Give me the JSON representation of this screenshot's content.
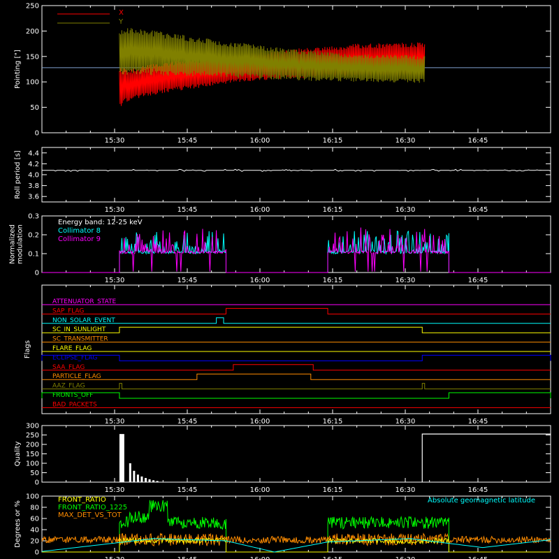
{
  "chart_data": [
    {
      "id": "pointing",
      "type": "line",
      "ylabel": "Pointing [\"]",
      "ylim": [
        0,
        250
      ],
      "yticks": [
        0,
        50,
        100,
        150,
        200,
        250
      ],
      "xticklabels": [
        "15:30",
        "15:45",
        "16:00",
        "16:15",
        "16:30",
        "16:45"
      ],
      "xtick_minutes": [
        30,
        45,
        60,
        75,
        90,
        105
      ],
      "xlim_minutes": [
        15,
        120
      ],
      "data_window_minutes": [
        31,
        94
      ],
      "reference_line": 128,
      "legend": [
        {
          "name": "X",
          "color": "#ff0000"
        },
        {
          "name": "Y",
          "color": "#808000"
        }
      ],
      "series": [
        {
          "name": "X",
          "color": "#ff0000",
          "envelope": {
            "x": [
              31,
              33,
              40,
              50,
              60,
              70,
              80,
              94
            ],
            "upper": [
              130,
              125,
              140,
              148,
              158,
              168,
              175,
              178
            ],
            "lower": [
              50,
              62,
              78,
              92,
              103,
              108,
              110,
              112
            ]
          }
        },
        {
          "name": "Y",
          "color": "#808000",
          "envelope": {
            "x": [
              31,
              33,
              40,
              50,
              60,
              70,
              80,
              94
            ],
            "upper": [
              205,
              210,
              198,
              185,
              172,
              162,
              155,
              152
            ],
            "lower": [
              110,
              115,
              112,
              110,
              106,
              102,
              100,
              98
            ]
          }
        }
      ]
    },
    {
      "id": "roll",
      "type": "line",
      "ylabel": "Roll period [s]",
      "ylim": [
        3.5,
        4.5
      ],
      "yticks": [
        3.6,
        3.8,
        4.0,
        4.2,
        4.4
      ],
      "yticklabels": [
        "3.6",
        "3.8",
        "4.0",
        "4.2",
        "4.4"
      ],
      "xticklabels": [
        "15:30",
        "15:45",
        "16:00",
        "16:15",
        "16:30",
        "16:45"
      ],
      "series": [
        {
          "name": "roll",
          "color": "#ffffff",
          "value": 4.08
        }
      ]
    },
    {
      "id": "modulation",
      "type": "line",
      "ylabel": [
        "Normalized",
        "modulation"
      ],
      "ylim": [
        0,
        0.3
      ],
      "yticks": [
        0,
        0.1,
        0.2,
        0.3
      ],
      "yticklabels": [
        "0",
        "0.1",
        "0.2",
        "0.3"
      ],
      "xticklabels": [
        "15:30",
        "15:45",
        "16:00",
        "16:15",
        "16:30",
        "16:45"
      ],
      "annotation": "Energy band: 12-25 keV",
      "legend": [
        {
          "name": "Collimator 8",
          "color": "#00ffff"
        },
        {
          "name": "Collimator 9",
          "color": "#ff00ff"
        }
      ],
      "active_intervals_minutes": [
        [
          31,
          53
        ],
        [
          74,
          99
        ]
      ],
      "base_level": 0.1
    },
    {
      "id": "flags",
      "type": "line",
      "ylabel": "Flags",
      "xticklabels": [
        "15:30",
        "15:45",
        "16:00",
        "16:15",
        "16:30",
        "16:45"
      ],
      "flags": [
        {
          "name": "ATTENUATOR_STATE",
          "color": "#ff00ff",
          "high": []
        },
        {
          "name": "SAP_FLAG",
          "color": "#ff0000",
          "high": [
            [
              53,
              74
            ]
          ]
        },
        {
          "name": "NON_SOLAR_EVENT",
          "color": "#00ffff",
          "high": [
            [
              51,
              52.5
            ]
          ]
        },
        {
          "name": "SC_IN_SUNLIGHT",
          "color": "#ffff00",
          "high": [
            [
              31,
              93.5
            ]
          ]
        },
        {
          "name": "SC_TRANSMITTER",
          "color": "#ff8c00",
          "high": []
        },
        {
          "name": "FLARE_FLAG",
          "color": "#ffff00",
          "high": []
        },
        {
          "name": "ECLIPSE_FLAG",
          "color": "#0000ff",
          "high": [
            [
              15,
              31
            ],
            [
              93.5,
              120
            ]
          ]
        },
        {
          "name": "SAA_FLAG",
          "color": "#ff0000",
          "high": [
            [
              54.5,
              71
            ]
          ]
        },
        {
          "name": "PARTICLE_FLAG",
          "color": "#ff8c00",
          "high": [
            [
              47,
              70.5
            ]
          ]
        },
        {
          "name": "AAZ_FLAG",
          "color": "#808000",
          "high": [
            [
              31,
              31.5
            ],
            [
              93.5,
              94
            ]
          ]
        },
        {
          "name": "FRONTS_OFF",
          "color": "#00ff00",
          "high": [
            [
              15,
              31
            ],
            [
              99,
              120
            ]
          ]
        },
        {
          "name": "BAD_PACKETS",
          "color": "#ff0000",
          "high": []
        }
      ]
    },
    {
      "id": "quality",
      "type": "bar",
      "ylabel": "Quality",
      "ylim": [
        0,
        300
      ],
      "yticks": [
        0,
        50,
        100,
        150,
        200,
        250,
        300
      ],
      "xticklabels": [
        "15:30",
        "15:45",
        "16:00",
        "16:15",
        "16:30",
        "16:45"
      ],
      "spike": {
        "x": [
          31,
          32
        ],
        "value": 255
      },
      "decay": [
        {
          "x": 33,
          "value": 100
        },
        {
          "x": 33.8,
          "value": 60
        },
        {
          "x": 34.6,
          "value": 40
        },
        {
          "x": 35.4,
          "value": 30
        },
        {
          "x": 36.2,
          "value": 22
        },
        {
          "x": 37,
          "value": 15
        },
        {
          "x": 37.8,
          "value": 10
        },
        {
          "x": 38.6,
          "value": 6
        }
      ],
      "step": {
        "x": 93.5,
        "value": 255
      }
    },
    {
      "id": "ratios",
      "type": "line",
      "ylabel": "Degrees or %",
      "ylim": [
        0,
        100
      ],
      "yticks": [
        0,
        20,
        40,
        60,
        80,
        100
      ],
      "xticklabels": [
        "15:30",
        "15:45",
        "16:00",
        "16:15",
        "16:30",
        "16:45"
      ],
      "legend": [
        {
          "name": "FRONT_RATIO",
          "color": "#ffff00"
        },
        {
          "name": "FRONT_RATIO_1225",
          "color": "#00ff00"
        },
        {
          "name": "MAX_DET_VS_TOT",
          "color": "#ff8c00"
        }
      ],
      "annotation": {
        "text": "Absolute geomagnetic latitude",
        "color": "#00ffff"
      },
      "latitude": {
        "x": [
          15,
          22,
          38,
          53,
          63,
          74,
          91,
          106,
          120
        ],
        "y": [
          1,
          8,
          24,
          20,
          0,
          18,
          24,
          8,
          22
        ]
      }
    }
  ]
}
